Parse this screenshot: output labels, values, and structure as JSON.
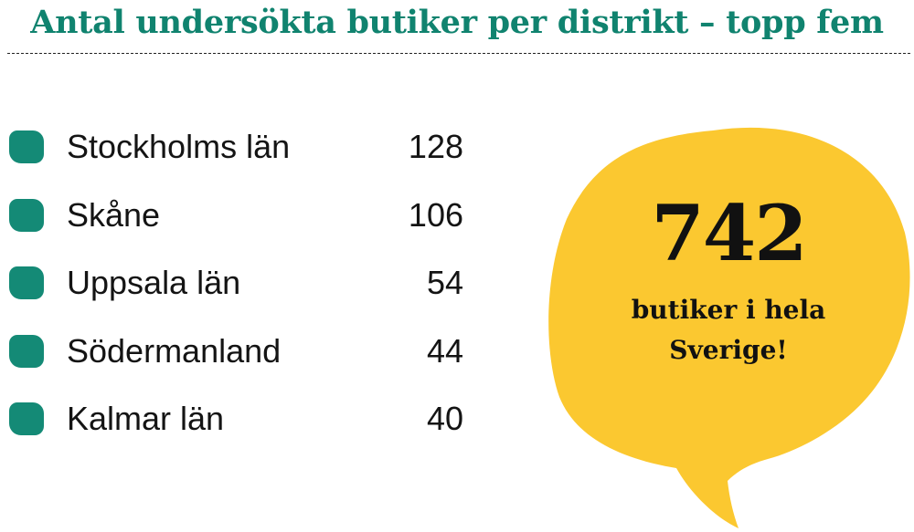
{
  "title": "Antal undersökta butiker per distrikt – topp fem",
  "colors": {
    "title": "#10836f",
    "bullet": "#148a76",
    "bubble": "#fbc830",
    "text": "#141414"
  },
  "chart_data": {
    "type": "table",
    "title": "Antal undersökta butiker per distrikt – topp fem",
    "categories": [
      "Stockholms län",
      "Skåne",
      "Uppsala län",
      "Södermanland",
      "Kalmar län"
    ],
    "values": [
      128,
      106,
      54,
      44,
      40
    ]
  },
  "callout": {
    "number": "742",
    "line1": "butiker i hela",
    "line2": "Sverige!"
  }
}
